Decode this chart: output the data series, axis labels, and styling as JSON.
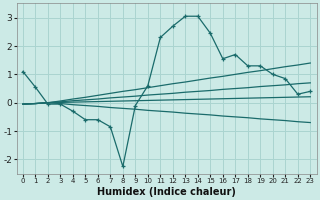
{
  "x": [
    0,
    1,
    2,
    3,
    4,
    5,
    6,
    7,
    8,
    9,
    10,
    11,
    12,
    13,
    14,
    15,
    16,
    17,
    18,
    19,
    20,
    21,
    22,
    23
  ],
  "main_line": [
    1.1,
    0.55,
    -0.05,
    -0.05,
    -0.3,
    -0.6,
    -0.6,
    -0.85,
    -2.25,
    -0.1,
    0.6,
    2.3,
    2.7,
    3.05,
    3.05,
    2.45,
    1.55,
    1.7,
    1.3,
    1.3,
    1.0,
    0.85,
    0.3,
    0.4
  ],
  "trend_high": [
    -0.05,
    -0.03,
    0.0,
    0.06,
    0.13,
    0.19,
    0.26,
    0.33,
    0.4,
    0.46,
    0.53,
    0.6,
    0.67,
    0.73,
    0.8,
    0.87,
    0.93,
    1.0,
    1.07,
    1.13,
    1.2,
    1.27,
    1.33,
    1.4
  ],
  "trend_mid1": [
    -0.05,
    -0.03,
    0.0,
    0.03,
    0.07,
    0.1,
    0.13,
    0.17,
    0.2,
    0.23,
    0.27,
    0.3,
    0.33,
    0.37,
    0.4,
    0.43,
    0.47,
    0.5,
    0.53,
    0.57,
    0.6,
    0.63,
    0.67,
    0.7
  ],
  "trend_mid2": [
    -0.05,
    -0.03,
    0.0,
    0.01,
    0.02,
    0.03,
    0.04,
    0.05,
    0.06,
    0.07,
    0.08,
    0.09,
    0.1,
    0.11,
    0.12,
    0.13,
    0.14,
    0.15,
    0.16,
    0.17,
    0.18,
    0.19,
    0.2,
    0.21
  ],
  "trend_low": [
    -0.05,
    -0.03,
    0.0,
    -0.03,
    -0.07,
    -0.1,
    -0.13,
    -0.17,
    -0.2,
    -0.23,
    -0.27,
    -0.3,
    -0.33,
    -0.37,
    -0.4,
    -0.43,
    -0.47,
    -0.5,
    -0.53,
    -0.57,
    -0.6,
    -0.63,
    -0.67,
    -0.7
  ],
  "bg_color": "#cceae6",
  "line_color": "#1a6b6b",
  "grid_color": "#aad4d0",
  "xlabel": "Humidex (Indice chaleur)",
  "ylim": [
    -2.5,
    3.5
  ],
  "xlim": [
    -0.5,
    23.5
  ],
  "yticks": [
    -2,
    -1,
    0,
    1,
    2,
    3
  ],
  "xticks": [
    0,
    1,
    2,
    3,
    4,
    5,
    6,
    7,
    8,
    9,
    10,
    11,
    12,
    13,
    14,
    15,
    16,
    17,
    18,
    19,
    20,
    21,
    22,
    23
  ]
}
